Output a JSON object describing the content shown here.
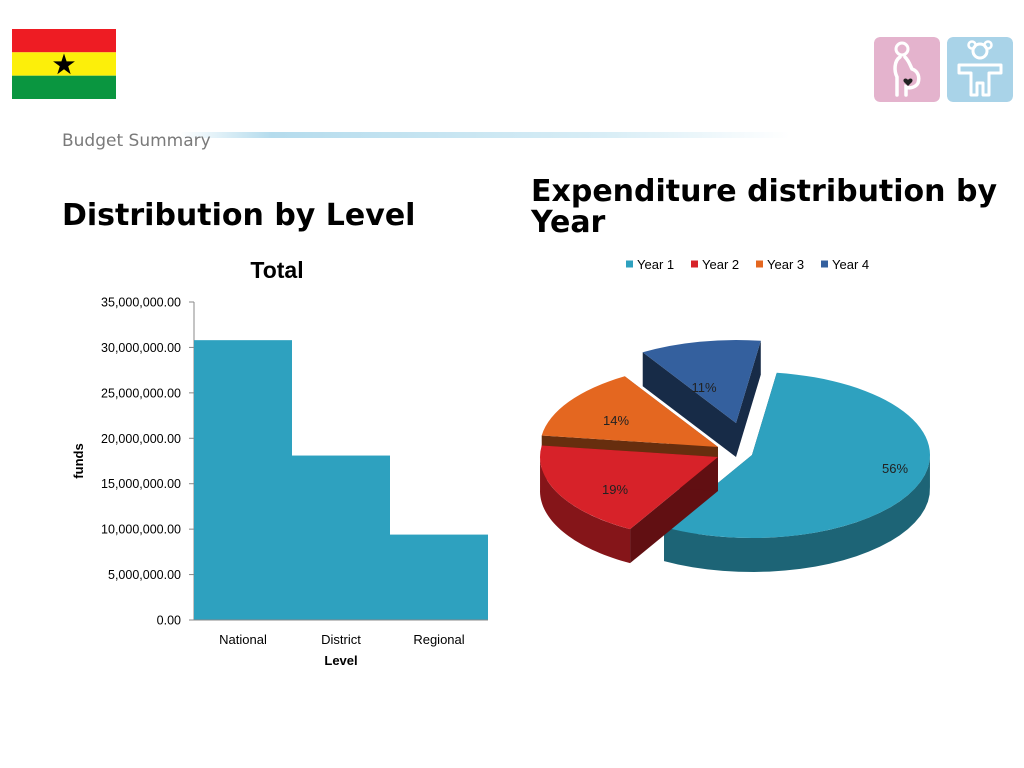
{
  "header": {
    "section_label": "Budget Summary",
    "flag_icon": "ghana-flag-icon",
    "icons": [
      "pregnant-mother-icon",
      "child-icon"
    ]
  },
  "left_panel": {
    "heading": "Distribution by Level"
  },
  "right_panel": {
    "heading": "Expenditure distribution by Year"
  },
  "colors": {
    "bar": "#2ea1bf",
    "year1": "#2ea1bf",
    "year2": "#d72229",
    "year3": "#e46720",
    "year4": "#34609e",
    "mother_tile": "#e4b3cd",
    "child_tile": "#a9d3e8"
  },
  "chart_data": [
    {
      "type": "bar",
      "title": "Total",
      "xlabel": "Level",
      "ylabel": "funds",
      "categories": [
        "National",
        "District",
        "Regional"
      ],
      "values": [
        30800000,
        18100000,
        9400000
      ],
      "ylim": [
        0,
        35000000
      ],
      "yticks": [
        0,
        5000000,
        10000000,
        15000000,
        20000000,
        25000000,
        30000000,
        35000000
      ],
      "ytick_labels": [
        "0.00",
        "5,000,000.00",
        "10,000,000.00",
        "15,000,000.00",
        "20,000,000.00",
        "25,000,000.00",
        "30,000,000.00",
        "35,000,000.00"
      ],
      "grid": false,
      "legend": "none"
    },
    {
      "type": "pie",
      "title": "",
      "legend": "top",
      "labels": [
        "Year 1",
        "Year 2",
        "Year 3",
        "Year 4"
      ],
      "values": [
        56,
        19,
        14,
        11
      ],
      "value_labels": [
        "56%",
        "19%",
        "14%",
        "11%"
      ],
      "exploded": true,
      "style": "3d"
    }
  ]
}
